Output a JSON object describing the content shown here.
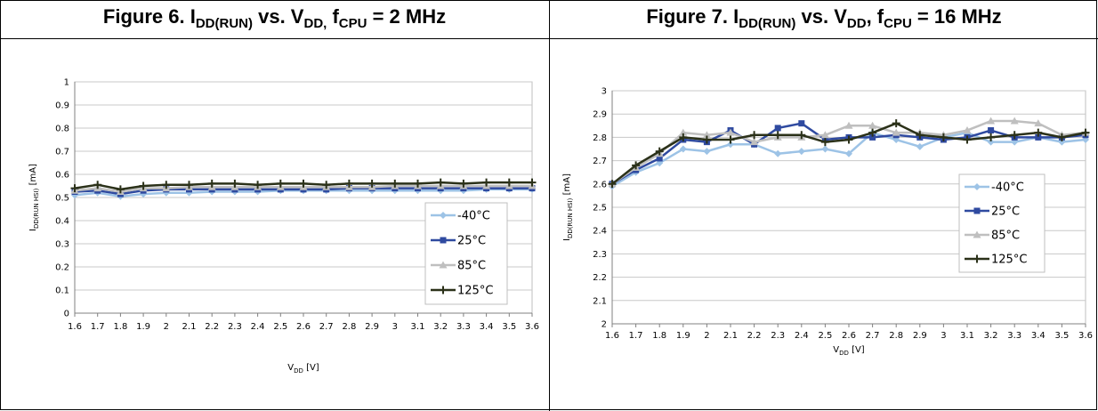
{
  "figures": [
    {
      "num": "Figure 6. ",
      "i_main": "I",
      "i_sub": "DD(RUN)",
      "vs": " vs. ",
      "v_main": "V",
      "v_sub": "DD,",
      "f_main": " f",
      "f_sub": "CPU",
      "tail": " = 2 MHz"
    },
    {
      "num": "Figure 7. ",
      "i_main": "I",
      "i_sub": "DD(RUN)",
      "vs": " vs. ",
      "v_main": "V",
      "v_sub": "DD",
      "f_main": ", f",
      "f_sub": "CPU",
      "tail": " = 16 MHz"
    }
  ],
  "chart_data": [
    {
      "type": "line",
      "x": [
        1.6,
        1.7,
        1.8,
        1.9,
        2.0,
        2.1,
        2.2,
        2.3,
        2.4,
        2.5,
        2.6,
        2.7,
        2.8,
        2.9,
        3.0,
        3.1,
        3.2,
        3.3,
        3.4,
        3.5,
        3.6
      ],
      "x_tick_labels": [
        "1.6",
        "1.7",
        "1.8",
        "1.9",
        "2",
        "2.1",
        "2.2",
        "2.3",
        "2.4",
        "2.5",
        "2.6",
        "2.7",
        "2.8",
        "2.9",
        "3",
        "3.1",
        "3.2",
        "3.3",
        "3.4",
        "3.5",
        "3.6"
      ],
      "ylim": [
        0,
        1
      ],
      "y_ticks": [
        0,
        0.1,
        0.2,
        0.3,
        0.4,
        0.5,
        0.6,
        0.7,
        0.8,
        0.9,
        1
      ],
      "y_tick_labels": [
        "0",
        "0.1",
        "0.2",
        "0.3",
        "0.4",
        "0.5",
        "0.6",
        "0.7",
        "0.8",
        "0.9",
        "1"
      ],
      "xlabel": {
        "main": "V",
        "sub": "DD",
        "unit": " [V]"
      },
      "ylabel": {
        "main": "I",
        "sub": "DD(RUN HSI)",
        "unit": " [mA]"
      },
      "grid": true,
      "legend": "right",
      "series": [
        {
          "name": "-40°C",
          "color": "#9dc3e6",
          "marker": "diamond",
          "values": [
            0.51,
            0.52,
            0.505,
            0.515,
            0.52,
            0.52,
            0.525,
            0.525,
            0.525,
            0.53,
            0.53,
            0.53,
            0.53,
            0.53,
            0.53,
            0.53,
            0.53,
            0.53,
            0.535,
            0.535,
            0.535
          ]
        },
        {
          "name": "25°C",
          "color": "#2f4aa0",
          "marker": "square",
          "values": [
            0.525,
            0.53,
            0.515,
            0.53,
            0.535,
            0.535,
            0.535,
            0.535,
            0.535,
            0.535,
            0.535,
            0.535,
            0.54,
            0.54,
            0.54,
            0.54,
            0.54,
            0.54,
            0.54,
            0.54,
            0.54
          ]
        },
        {
          "name": "85°C",
          "color": "#bfbfbf",
          "marker": "triangle",
          "values": [
            0.53,
            0.54,
            0.525,
            0.54,
            0.54,
            0.545,
            0.545,
            0.545,
            0.545,
            0.545,
            0.545,
            0.545,
            0.545,
            0.545,
            0.55,
            0.55,
            0.55,
            0.55,
            0.55,
            0.55,
            0.55
          ]
        },
        {
          "name": "125°C",
          "color": "#2b3119",
          "marker": "plus",
          "values": [
            0.54,
            0.555,
            0.535,
            0.55,
            0.555,
            0.555,
            0.56,
            0.56,
            0.555,
            0.56,
            0.56,
            0.555,
            0.56,
            0.56,
            0.56,
            0.56,
            0.565,
            0.56,
            0.565,
            0.565,
            0.565
          ]
        }
      ]
    },
    {
      "type": "line",
      "x": [
        1.6,
        1.7,
        1.8,
        1.9,
        2.0,
        2.1,
        2.2,
        2.3,
        2.4,
        2.5,
        2.6,
        2.7,
        2.8,
        2.9,
        3.0,
        3.1,
        3.2,
        3.3,
        3.4,
        3.5,
        3.6
      ],
      "x_tick_labels": [
        "1.6",
        "1.7",
        "1.8",
        "1.9",
        "2",
        "2.1",
        "2.2",
        "2.3",
        "2.4",
        "2.5",
        "2.6",
        "2.7",
        "2.8",
        "2.9",
        "3",
        "3.1",
        "3.2",
        "3.3",
        "3.4",
        "3.5",
        "3.6"
      ],
      "ylim": [
        2,
        3
      ],
      "y_ticks": [
        2,
        2.1,
        2.2,
        2.3,
        2.4,
        2.5,
        2.6,
        2.7,
        2.8,
        2.9,
        3
      ],
      "y_tick_labels": [
        "2",
        "2.1",
        "2.2",
        "2.3",
        "2.4",
        "2.5",
        "2.6",
        "2.7",
        "2.8",
        "2.9",
        "3"
      ],
      "xlabel": {
        "main": "V",
        "sub": "DD",
        "unit": " [V]"
      },
      "ylabel": {
        "main": "I",
        "sub": "DD(RUN HSI)",
        "unit": " [mA]"
      },
      "grid": true,
      "legend": "right",
      "series": [
        {
          "name": "-40°C",
          "color": "#9dc3e6",
          "marker": "diamond",
          "values": [
            2.59,
            2.65,
            2.69,
            2.75,
            2.74,
            2.77,
            2.77,
            2.73,
            2.74,
            2.75,
            2.73,
            2.82,
            2.79,
            2.76,
            2.8,
            2.82,
            2.78,
            2.78,
            2.8,
            2.78,
            2.79
          ]
        },
        {
          "name": "25°C",
          "color": "#2f4aa0",
          "marker": "square",
          "values": [
            2.6,
            2.66,
            2.71,
            2.79,
            2.78,
            2.83,
            2.77,
            2.84,
            2.86,
            2.79,
            2.8,
            2.8,
            2.81,
            2.8,
            2.79,
            2.8,
            2.83,
            2.8,
            2.8,
            2.8,
            2.81
          ]
        },
        {
          "name": "85°C",
          "color": "#bfbfbf",
          "marker": "triangle",
          "values": [
            2.6,
            2.67,
            2.73,
            2.82,
            2.81,
            2.82,
            2.78,
            2.8,
            2.8,
            2.81,
            2.85,
            2.85,
            2.82,
            2.82,
            2.81,
            2.83,
            2.87,
            2.87,
            2.86,
            2.81,
            2.82
          ]
        },
        {
          "name": "125°C",
          "color": "#2b3119",
          "marker": "plus",
          "values": [
            2.6,
            2.68,
            2.74,
            2.8,
            2.79,
            2.79,
            2.81,
            2.81,
            2.81,
            2.78,
            2.79,
            2.82,
            2.86,
            2.81,
            2.8,
            2.79,
            2.8,
            2.81,
            2.82,
            2.8,
            2.82
          ]
        }
      ]
    }
  ]
}
